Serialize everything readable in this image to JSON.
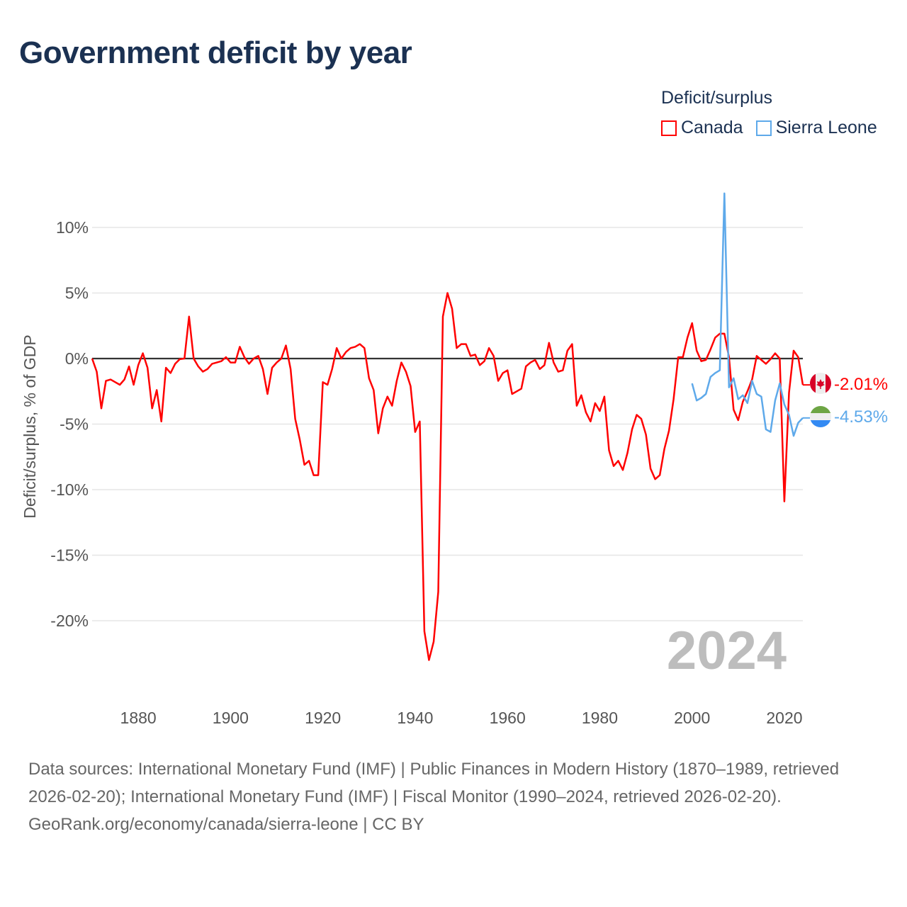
{
  "header": {
    "title": "Government deficit by year"
  },
  "legend": {
    "title": "Deficit/surplus",
    "items": [
      {
        "label": "Canada",
        "color": "#ff0000"
      },
      {
        "label": "Sierra Leone",
        "color": "#5ea9ea"
      }
    ]
  },
  "year_watermark": "2024",
  "end_labels": {
    "canada": "-2.01%",
    "sierra_leone": "-4.53%"
  },
  "footer": {
    "sources": "Data sources: International Monetary Fund (IMF) | Public Finances in Modern History (1870–1989, retrieved 2026-02-20); International Monetary Fund (IMF) | Fiscal Monitor (1990–2024, retrieved 2026-02-20).",
    "link": "GeoRank.org/economy/canada/sierra-leone | CC BY"
  },
  "chart_data": {
    "type": "line",
    "title": "Government deficit by year",
    "xlabel": "",
    "ylabel": "Deficit/surplus, % of GDP",
    "xlim": [
      1870,
      2024
    ],
    "ylim": [
      -25,
      14
    ],
    "grid": true,
    "legend_placement": "top-right",
    "x_ticks": [
      1880,
      1900,
      1920,
      1940,
      1960,
      1980,
      2000,
      2020
    ],
    "x_tick_labels": [
      "1880",
      "1900",
      "1920",
      "1940",
      "1960",
      "1980",
      "2000",
      "2020"
    ],
    "y_ticks": [
      10,
      5,
      0,
      -5,
      -10,
      -15,
      -20
    ],
    "y_tick_labels": [
      "10%",
      "5%",
      "0%",
      "-5%",
      "-10%",
      "-15%",
      "-20%"
    ],
    "series": [
      {
        "name": "Canada",
        "color": "#ff0000",
        "start_year": 1870,
        "values": [
          0,
          -1.0,
          -3.8,
          -1.7,
          -1.6,
          -1.8,
          -2.0,
          -1.6,
          -0.6,
          -2.0,
          -0.5,
          0.4,
          -0.7,
          -3.8,
          -2.4,
          -4.8,
          -0.7,
          -1.1,
          -0.4,
          -0.05,
          0,
          3.2,
          0,
          -0.6,
          -1.0,
          -0.8,
          -0.4,
          -0.3,
          -0.2,
          0.1,
          -0.3,
          -0.3,
          0.9,
          0.1,
          -0.4,
          0,
          0.2,
          -0.8,
          -2.7,
          -0.7,
          -0.3,
          0,
          1.0,
          -0.8,
          -4.6,
          -6.2,
          -8.1,
          -7.8,
          -8.9,
          -8.9,
          -1.8,
          -2.0,
          -0.8,
          0.8,
          0,
          0.5,
          0.8,
          0.9,
          1.1,
          0.8,
          -1.5,
          -2.4,
          -5.7,
          -3.8,
          -2.9,
          -3.6,
          -1.7,
          -0.3,
          -1.0,
          -2.1,
          -5.6,
          -4.8,
          -20.8,
          -23.0,
          -21.6,
          -17.8,
          3.2,
          5.0,
          3.8,
          0.8,
          1.1,
          1.1,
          0.2,
          0.3,
          -0.5,
          -0.2,
          0.8,
          0.2,
          -1.7,
          -1.1,
          -0.9,
          -2.7,
          -2.5,
          -2.3,
          -0.6,
          -0.3,
          -0.1,
          -0.8,
          -0.5,
          1.2,
          -0.3,
          -1.0,
          -0.9,
          0.6,
          1.1,
          -3.6,
          -2.8,
          -4.1,
          -4.8,
          -3.4,
          -4.0,
          -2.9,
          -7.0,
          -8.2,
          -7.8,
          -8.5,
          -7.2,
          -5.4,
          -4.3,
          -4.6,
          -5.8,
          -8.4,
          -9.2,
          -8.9,
          -6.9,
          -5.5,
          -3.1,
          0.1,
          0.1,
          1.6,
          2.7,
          0.6,
          -0.2,
          -0.1,
          0.7,
          1.6,
          1.9,
          1.9,
          0.1,
          -3.9,
          -4.7,
          -3.3,
          -2.5,
          -1.6,
          0.2,
          -0.1,
          -0.4,
          -0.05,
          0.4,
          0.0,
          -10.9,
          -2.6,
          0.6,
          0.1,
          -2.01
        ]
      },
      {
        "name": "Sierra Leone",
        "color": "#5ea9ea",
        "start_year": 2000,
        "values": [
          -1.9,
          -3.2,
          -3.0,
          -2.7,
          -1.4,
          -1.1,
          -0.9,
          12.6,
          -2.2,
          -1.5,
          -3.1,
          -2.8,
          -3.4,
          -1.7,
          -2.7,
          -2.9,
          -5.4,
          -5.6,
          -3.2,
          -1.9,
          -3.5,
          -4.3,
          -5.9,
          -4.9,
          -4.53
        ]
      }
    ]
  }
}
